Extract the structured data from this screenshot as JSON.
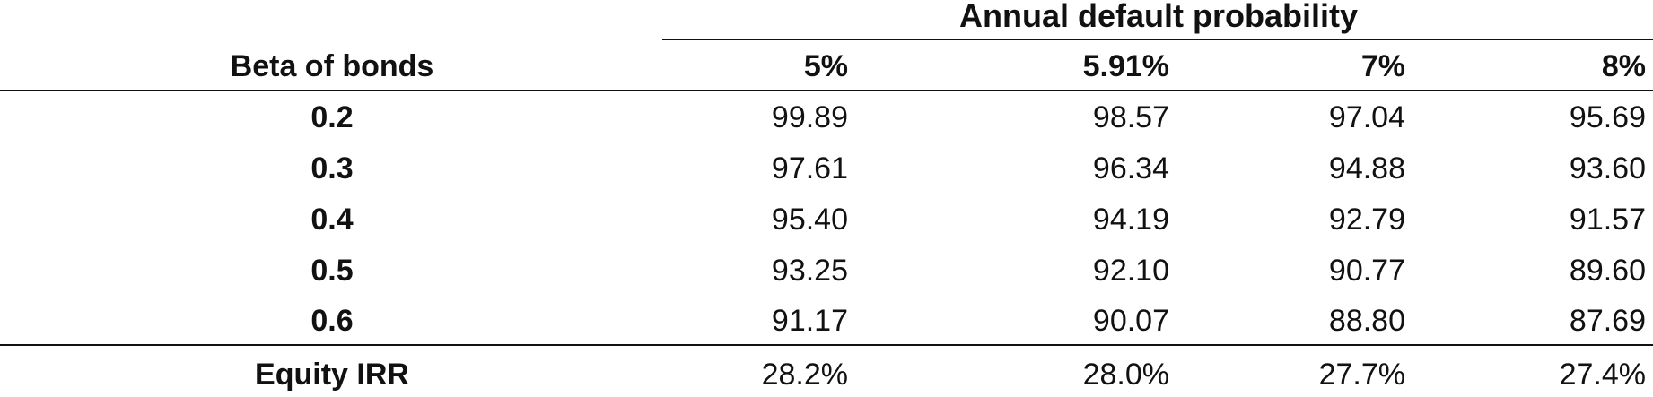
{
  "table": {
    "group_header": "Annual default probability",
    "row_header_label": "Beta of bonds",
    "columns": [
      "5%",
      "5.91%",
      "7%",
      "8%"
    ],
    "rows": [
      {
        "beta": "0.2",
        "values": [
          "99.89",
          "98.57",
          "97.04",
          "95.69"
        ]
      },
      {
        "beta": "0.3",
        "values": [
          "97.61",
          "96.34",
          "94.88",
          "93.60"
        ]
      },
      {
        "beta": "0.4",
        "values": [
          "95.40",
          "94.19",
          "92.79",
          "91.57"
        ]
      },
      {
        "beta": "0.5",
        "values": [
          "93.25",
          "92.10",
          "90.77",
          "89.60"
        ]
      },
      {
        "beta": "0.6",
        "values": [
          "91.17",
          "90.07",
          "88.80",
          "87.69"
        ]
      }
    ],
    "footer": {
      "label": "Equity IRR",
      "values": [
        "28.2%",
        "28.0%",
        "27.7%",
        "27.4%"
      ]
    }
  }
}
